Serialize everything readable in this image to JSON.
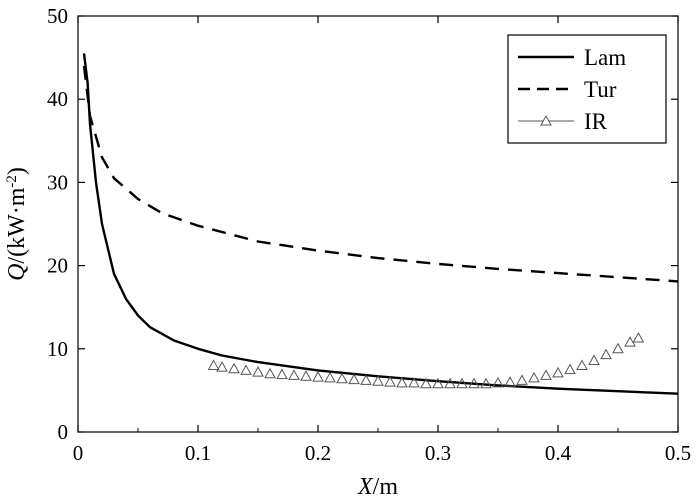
{
  "chart_data": {
    "type": "line",
    "xlabel_italic": "X",
    "xlabel_rest": "/m",
    "ylabel_italic": "Q",
    "ylabel_rest": "/(kW·m",
    "ylabel_sup": "-2",
    "ylabel_close": ")",
    "xlim": [
      0,
      0.5
    ],
    "ylim": [
      0,
      50
    ],
    "xticks": [
      "0",
      "0.1",
      "0.2",
      "0.3",
      "0.4",
      "0.5"
    ],
    "yticks": [
      "0",
      "10",
      "20",
      "30",
      "40",
      "50"
    ],
    "xtick_values": [
      0,
      0.1,
      0.2,
      0.3,
      0.4,
      0.5
    ],
    "ytick_values": [
      0,
      10,
      20,
      30,
      40,
      50
    ],
    "grid": false,
    "legend_position": "top-right",
    "series": [
      {
        "name": "Lam",
        "style": "solid",
        "color": "#000000",
        "x": [
          0.005,
          0.008,
          0.01,
          0.015,
          0.02,
          0.03,
          0.04,
          0.05,
          0.06,
          0.08,
          0.1,
          0.12,
          0.15,
          0.2,
          0.25,
          0.3,
          0.35,
          0.4,
          0.45,
          0.5
        ],
        "y": [
          45.5,
          42,
          37,
          30,
          25,
          19,
          16,
          14,
          12.6,
          11,
          10,
          9.2,
          8.4,
          7.4,
          6.7,
          6.1,
          5.6,
          5.2,
          4.9,
          4.6
        ]
      },
      {
        "name": "Tur",
        "style": "dashed",
        "color": "#000000",
        "x": [
          0.005,
          0.01,
          0.02,
          0.03,
          0.05,
          0.07,
          0.1,
          0.15,
          0.2,
          0.25,
          0.3,
          0.35,
          0.4,
          0.45,
          0.5
        ],
        "y": [
          44,
          38,
          33,
          30.5,
          28,
          26.3,
          24.8,
          22.9,
          21.8,
          20.9,
          20.2,
          19.6,
          19.1,
          18.6,
          18.1
        ]
      },
      {
        "name": "IR",
        "style": "triangle-markers",
        "color": "#555555",
        "x": [
          0.113,
          0.12,
          0.13,
          0.14,
          0.15,
          0.16,
          0.17,
          0.18,
          0.19,
          0.2,
          0.21,
          0.22,
          0.23,
          0.24,
          0.25,
          0.26,
          0.27,
          0.28,
          0.29,
          0.3,
          0.31,
          0.32,
          0.33,
          0.34,
          0.35,
          0.36,
          0.37,
          0.38,
          0.39,
          0.4,
          0.41,
          0.42,
          0.43,
          0.44,
          0.45,
          0.46,
          0.467
        ],
        "y": [
          8.0,
          7.8,
          7.6,
          7.4,
          7.2,
          7.0,
          6.9,
          6.8,
          6.7,
          6.6,
          6.5,
          6.4,
          6.3,
          6.2,
          6.1,
          6.0,
          5.9,
          5.9,
          5.8,
          5.8,
          5.8,
          5.8,
          5.8,
          5.8,
          5.9,
          6.0,
          6.2,
          6.5,
          6.8,
          7.1,
          7.5,
          8.0,
          8.6,
          9.3,
          10.0,
          10.8,
          11.3
        ]
      }
    ]
  }
}
